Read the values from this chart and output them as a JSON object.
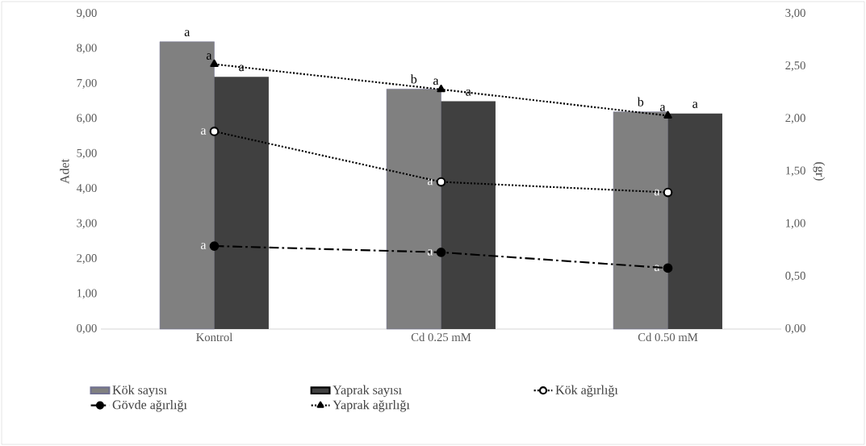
{
  "chart_data": {
    "type": "bar",
    "ylabel": "Adet",
    "y2label": "(gr)",
    "categories": [
      "Kontrol",
      "Cd 0.25 mM",
      "Cd 0.50 mM"
    ],
    "series": [
      {
        "name": "Kök sayısı",
        "color": "#808080",
        "values": [
          8.2,
          6.85,
          6.2
        ]
      },
      {
        "name": "Yaprak sayısı",
        "color": "#404040",
        "values": [
          7.2,
          6.5,
          6.15
        ]
      },
      {
        "name": "Kök ağırlığı",
        "type": "line",
        "axis": "y2",
        "color": "#000000",
        "marker": "open circle",
        "line_style": "dotted",
        "values": [
          1.88,
          1.4,
          1.3
        ]
      },
      {
        "name": "Gövde ağırlığı",
        "type": "line",
        "axis": "y2",
        "color": "#000000",
        "marker": "circle",
        "line_style": "dashdot",
        "values": [
          0.79,
          0.73,
          0.58
        ]
      },
      {
        "name": "Yaprak ağırlığı",
        "type": "line",
        "axis": "y2",
        "color": "#000000",
        "marker": "triangle",
        "line_style": "dotted",
        "values": [
          2.52,
          2.28,
          2.03
        ]
      }
    ],
    "ylim": [
      0,
      9
    ],
    "yticks": [
      {
        "value": 0,
        "label": "0,00"
      },
      {
        "value": 1,
        "label": "1,00"
      },
      {
        "value": 2,
        "label": "2,00"
      },
      {
        "value": 3,
        "label": "3,00"
      },
      {
        "value": 4,
        "label": "4,00"
      },
      {
        "value": 5,
        "label": "5,00"
      },
      {
        "value": 6,
        "label": "6,00"
      },
      {
        "value": 7,
        "label": "7,00"
      },
      {
        "value": 8,
        "label": "8,00"
      },
      {
        "value": 9,
        "label": "9,00"
      }
    ],
    "y2lim": [
      0,
      3
    ],
    "y2ticks": [
      {
        "value": 0,
        "label": "0,00"
      },
      {
        "value": 0.5,
        "label": "0,50"
      },
      {
        "value": 1,
        "label": "1,00"
      },
      {
        "value": 1.5,
        "label": "1,50"
      },
      {
        "value": 2,
        "label": "2,00"
      },
      {
        "value": 2.5,
        "label": "2,50"
      },
      {
        "value": 3,
        "label": "3,00"
      }
    ],
    "legend": "bottom",
    "annotations": [
      {
        "text": "a",
        "x": "Kontrol",
        "y": 8.2
      },
      {
        "text": "a",
        "x": "Kontrol",
        "y": 7.56
      },
      {
        "text": "a",
        "x": "Kontrol",
        "y": 7.2
      },
      {
        "text": "a",
        "x": "Kontrol",
        "y": 5.64
      },
      {
        "text": "a",
        "x": "Kontrol",
        "y": 2.37
      },
      {
        "text": "b",
        "x": "Cd 0.25 mM",
        "y": 6.85
      },
      {
        "text": "a",
        "x": "Cd 0.25 mM",
        "y": 6.84
      },
      {
        "text": "a",
        "x": "Cd 0.25 mM",
        "y": 6.5
      },
      {
        "text": "a",
        "x": "Cd 0.25 mM",
        "y": 4.2
      },
      {
        "text": "a",
        "x": "Cd 0.25 mM",
        "y": 2.19
      },
      {
        "text": "b",
        "x": "Cd 0.50 mM",
        "y": 6.2
      },
      {
        "text": "a",
        "x": "Cd 0.50 mM",
        "y": 6.09
      },
      {
        "text": "a",
        "x": "Cd 0.50 mM",
        "y": 6.15
      },
      {
        "text": "a",
        "x": "Cd 0.50 mM",
        "y": 3.9
      },
      {
        "text": "a",
        "x": "Cd 0.50 mM",
        "y": 1.74
      }
    ]
  }
}
